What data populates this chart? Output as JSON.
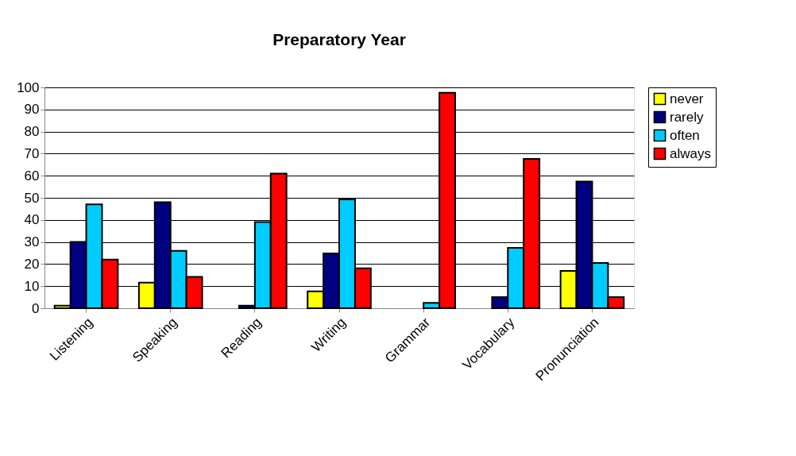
{
  "chart_data": {
    "type": "bar",
    "title": "Preparatory Year",
    "categories": [
      "Listening",
      "Speaking",
      "Reading",
      "Writing",
      "Grammar",
      "Vocabulary",
      "Pronunciation"
    ],
    "series": [
      {
        "name": "never",
        "color": "#ffff00",
        "values": [
          1.2,
          11.6,
          null,
          7.6,
          null,
          null,
          16.9
        ]
      },
      {
        "name": "rarely",
        "color": "#000080",
        "values": [
          30,
          48,
          1.2,
          24.8,
          null,
          5,
          57.4
        ]
      },
      {
        "name": "often",
        "color": "#00ccff",
        "values": [
          47,
          26,
          39,
          49.3,
          2.4,
          27.3,
          20.5
        ]
      },
      {
        "name": "always",
        "color": "#ff0000",
        "values": [
          22,
          14.2,
          61,
          18.1,
          97.6,
          67.6,
          5
        ]
      }
    ],
    "ylim": [
      0,
      100
    ],
    "yticks": [
      0,
      10,
      20,
      30,
      40,
      50,
      60,
      70,
      80,
      90,
      100
    ],
    "grid": "y",
    "legend": "right"
  }
}
